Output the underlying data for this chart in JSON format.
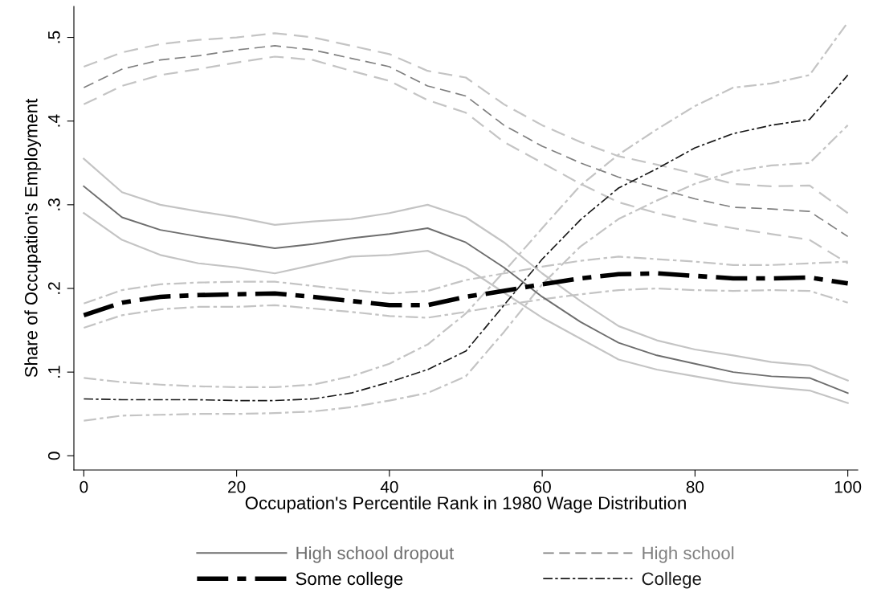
{
  "chart_data": {
    "type": "line",
    "xlabel": "Occupation's Percentile Rank in 1980 Wage Distribution",
    "ylabel": "Share of Occupation's Employment",
    "x": [
      0,
      5,
      10,
      15,
      20,
      25,
      30,
      35,
      40,
      45,
      50,
      55,
      60,
      65,
      70,
      75,
      80,
      85,
      90,
      95,
      100
    ],
    "xlim": [
      -1.3,
      101.3
    ],
    "xticks": [
      0,
      20,
      40,
      60,
      80,
      100
    ],
    "ylim": [
      -0.017,
      0.537
    ],
    "yticks": [
      {
        "value": 0,
        "label": "0"
      },
      {
        "value": 0.1,
        "label": ".1"
      },
      {
        "value": 0.2,
        "label": ".2"
      },
      {
        "value": 0.3,
        "label": ".3"
      },
      {
        "value": 0.4,
        "label": ".4"
      },
      {
        "value": 0.5,
        "label": ".5"
      }
    ],
    "grid": false,
    "legend": "bottom",
    "marker": "none",
    "series": [
      {
        "name": "High school dropout",
        "color": "#6e6e6e",
        "line_style": "solid",
        "values": [
          0.322,
          0.285,
          0.27,
          0.262,
          0.255,
          0.248,
          0.253,
          0.26,
          0.265,
          0.272,
          0.255,
          0.225,
          0.19,
          0.16,
          0.135,
          0.12,
          0.11,
          0.1,
          0.095,
          0.093,
          0.075
        ]
      },
      {
        "name": "High school",
        "color": "#808080",
        "line_style": "dashed",
        "values": [
          0.44,
          0.462,
          0.473,
          0.478,
          0.485,
          0.49,
          0.485,
          0.475,
          0.465,
          0.442,
          0.43,
          0.395,
          0.37,
          0.35,
          0.333,
          0.32,
          0.307,
          0.297,
          0.295,
          0.292,
          0.262
        ]
      },
      {
        "name": "Some college",
        "color": "#000000",
        "line_style": "dashdot",
        "values": [
          0.168,
          0.183,
          0.19,
          0.192,
          0.193,
          0.194,
          0.19,
          0.185,
          0.18,
          0.18,
          0.19,
          0.197,
          0.205,
          0.212,
          0.217,
          0.218,
          0.215,
          0.212,
          0.212,
          0.213,
          0.206
        ]
      },
      {
        "name": "College",
        "color": "#1a1a1a",
        "line_style": "dashdot",
        "values": [
          0.068,
          0.067,
          0.067,
          0.067,
          0.066,
          0.066,
          0.068,
          0.075,
          0.088,
          0.103,
          0.125,
          0.18,
          0.235,
          0.282,
          0.32,
          0.343,
          0.368,
          0.385,
          0.395,
          0.402,
          0.455
        ]
      },
      {
        "color": "#c4c4c4",
        "line_style": "solid",
        "values": [
          0.29,
          0.258,
          0.24,
          0.23,
          0.225,
          0.218,
          0.228,
          0.238,
          0.24,
          0.245,
          0.225,
          0.195,
          0.165,
          0.14,
          0.115,
          0.103,
          0.095,
          0.087,
          0.082,
          0.078,
          0.063
        ]
      },
      {
        "color": "#c4c4c4",
        "line_style": "solid",
        "values": [
          0.355,
          0.315,
          0.3,
          0.292,
          0.285,
          0.276,
          0.28,
          0.283,
          0.29,
          0.3,
          0.285,
          0.255,
          0.218,
          0.185,
          0.155,
          0.138,
          0.127,
          0.12,
          0.112,
          0.108,
          0.09
        ]
      },
      {
        "color": "#c4c4c4",
        "line_style": "dashed",
        "values": [
          0.42,
          0.442,
          0.455,
          0.462,
          0.47,
          0.477,
          0.473,
          0.46,
          0.448,
          0.425,
          0.41,
          0.375,
          0.35,
          0.325,
          0.303,
          0.29,
          0.28,
          0.272,
          0.265,
          0.258,
          0.23
        ]
      },
      {
        "color": "#c4c4c4",
        "line_style": "dashed",
        "values": [
          0.465,
          0.482,
          0.492,
          0.497,
          0.5,
          0.505,
          0.5,
          0.49,
          0.48,
          0.46,
          0.452,
          0.42,
          0.395,
          0.375,
          0.358,
          0.348,
          0.337,
          0.325,
          0.322,
          0.323,
          0.29
        ]
      },
      {
        "color": "#c4c4c4",
        "line_style": "dashdot",
        "values": [
          0.153,
          0.168,
          0.175,
          0.178,
          0.178,
          0.18,
          0.176,
          0.172,
          0.167,
          0.165,
          0.172,
          0.18,
          0.187,
          0.193,
          0.198,
          0.2,
          0.198,
          0.197,
          0.198,
          0.197,
          0.183
        ]
      },
      {
        "color": "#c4c4c4",
        "line_style": "dashdot",
        "values": [
          0.182,
          0.198,
          0.205,
          0.207,
          0.208,
          0.208,
          0.203,
          0.198,
          0.194,
          0.197,
          0.21,
          0.218,
          0.226,
          0.233,
          0.238,
          0.235,
          0.232,
          0.228,
          0.228,
          0.23,
          0.232
        ]
      },
      {
        "color": "#c4c4c4",
        "line_style": "dashdot",
        "values": [
          0.042,
          0.048,
          0.049,
          0.05,
          0.05,
          0.051,
          0.053,
          0.058,
          0.066,
          0.075,
          0.095,
          0.148,
          0.205,
          0.25,
          0.283,
          0.305,
          0.325,
          0.34,
          0.347,
          0.35,
          0.395
        ]
      },
      {
        "color": "#c4c4c4",
        "line_style": "dashdot",
        "values": [
          0.093,
          0.088,
          0.085,
          0.083,
          0.082,
          0.082,
          0.085,
          0.095,
          0.11,
          0.133,
          0.17,
          0.22,
          0.272,
          0.323,
          0.36,
          0.39,
          0.418,
          0.44,
          0.445,
          0.455,
          0.518
        ]
      }
    ]
  }
}
